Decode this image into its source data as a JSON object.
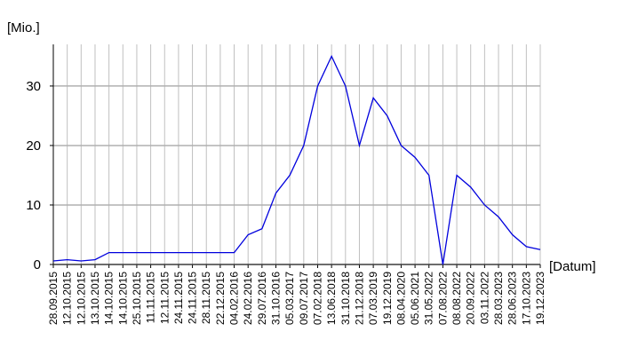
{
  "chart_data": {
    "type": "line",
    "y_label": "[Mio.]",
    "x_label": "[Datum]",
    "categories": [
      "28.09.2015",
      "12.10.2015",
      "12.10.2015",
      "13.10.2015",
      "14.10.2015",
      "14.10.2015",
      "25.10.2015",
      "11.11.2015",
      "12.11.2015",
      "24.11.2015",
      "24.11.2015",
      "28.11.2015",
      "22.12.2015",
      "04.02.2016",
      "24.02.2016",
      "29.07.2016",
      "31.10.2016",
      "05.03.2017",
      "09.07.2017",
      "07.02.2018",
      "13.06.2018",
      "31.10.2018",
      "21.12.2018",
      "07.03.2019",
      "19.12.2019",
      "08.04.2020",
      "05.06.2021",
      "31.05.2022",
      "07.08.2022",
      "08.08.2022",
      "20.09.2022",
      "03.11.2022",
      "28.03.2023",
      "28.06.2023",
      "17.10.2023",
      "19.12.2023"
    ],
    "values": [
      0.6,
      0.8,
      0.6,
      0.8,
      2,
      2,
      2,
      2,
      2,
      2,
      2,
      2,
      2,
      2,
      5,
      6,
      12,
      15,
      20,
      30,
      35,
      30,
      20,
      28,
      25,
      20,
      18,
      15,
      0,
      15,
      13,
      10,
      8,
      5,
      3,
      2.5
    ],
    "color": "#0000dd",
    "ylim": [
      0,
      37
    ],
    "yticks": [
      0,
      10,
      20,
      30
    ],
    "grid": true
  }
}
